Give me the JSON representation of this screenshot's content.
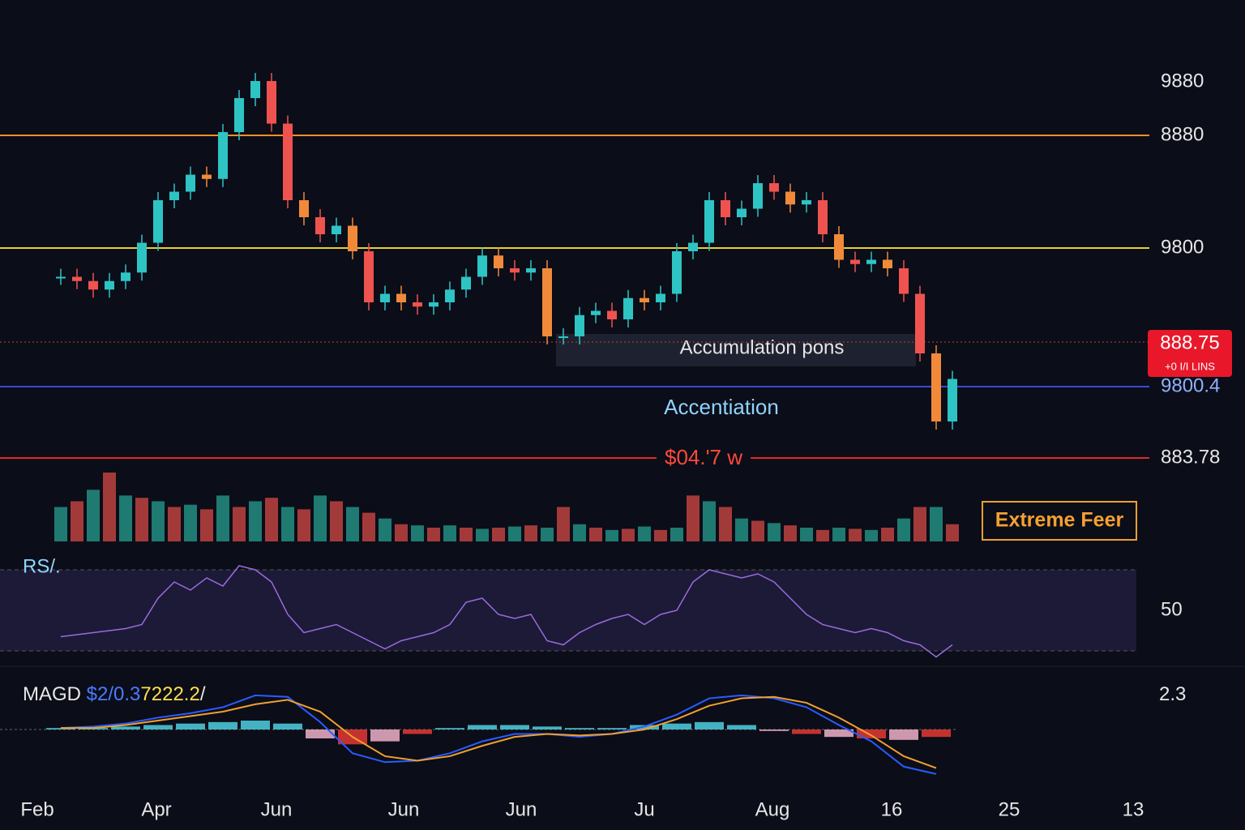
{
  "chart_data": {
    "type": "candlestick",
    "price_labels": [
      "9880",
      "8880",
      "9800",
      "9800.4",
      "883.78"
    ],
    "price_tag": "888.75",
    "price_tag_sub": "+0 I/I LINS",
    "annotations": [
      "Accumulation pons",
      "Accentiation",
      "$04.'7 w"
    ],
    "sentiment": "Extreme Feer",
    "x_labels": [
      "Feb",
      "Apr",
      "Jun",
      "Jun",
      "Jun",
      "Ju",
      "Aug",
      "16",
      "25",
      "13"
    ],
    "closes": [
      270,
      265,
      255,
      265,
      275,
      310,
      360,
      370,
      390,
      385,
      440,
      480,
      500,
      450,
      360,
      340,
      320,
      330,
      300,
      240,
      250,
      240,
      235,
      240,
      255,
      270,
      295,
      280,
      275,
      280,
      200,
      200,
      225,
      230,
      220,
      245,
      240,
      250,
      300,
      310,
      360,
      340,
      350,
      380,
      370,
      355,
      360,
      320,
      290,
      285,
      290,
      280,
      250,
      180,
      100,
      150
    ],
    "volume": [
      30,
      35,
      45,
      60,
      40,
      38,
      35,
      30,
      32,
      28,
      40,
      30,
      35,
      38,
      30,
      28,
      40,
      35,
      30,
      25,
      20,
      15,
      14,
      12,
      14,
      12,
      11,
      12,
      13,
      14,
      12,
      30,
      15,
      12,
      10,
      11,
      13,
      10,
      12,
      40,
      35,
      30,
      20,
      18,
      16,
      14,
      12,
      10,
      12,
      11,
      10,
      12,
      20,
      30,
      30,
      15
    ],
    "rsi": {
      "title": "RS/.",
      "ylim": [
        30,
        70
      ],
      "yticks": [
        50
      ],
      "values": [
        37,
        38,
        39,
        40,
        41,
        43,
        56,
        64,
        60,
        66,
        62,
        72,
        70,
        64,
        48,
        39,
        41,
        43,
        39,
        35,
        31,
        35,
        37,
        39,
        43,
        54,
        56,
        48,
        46,
        48,
        35,
        33,
        39,
        43,
        46,
        48,
        43,
        48,
        50,
        64,
        70,
        68,
        66,
        68,
        64,
        56,
        48,
        43,
        41,
        39,
        41,
        39,
        35,
        33,
        27,
        33
      ]
    },
    "macd": {
      "title": "MAGD",
      "params": [
        "$2/0.3",
        "7222.2",
        "/"
      ],
      "ylim": [
        -3.55,
        3.55
      ],
      "yticks": [
        2.3
      ],
      "macd": [
        0.1,
        0.2,
        0.4,
        0.8,
        1.1,
        1.5,
        2.3,
        2.2,
        0.5,
        -1.6,
        -2.2,
        -2.1,
        -1.6,
        -0.8,
        -0.3,
        -0.3,
        -0.5,
        -0.3,
        0.2,
        1.0,
        2.1,
        2.3,
        2.1,
        1.5,
        0.3,
        -0.8,
        -2.5,
        -3.0
      ],
      "signal": [
        0.1,
        0.1,
        0.3,
        0.6,
        0.9,
        1.2,
        1.7,
        2.0,
        1.2,
        -0.5,
        -1.8,
        -2.1,
        -1.8,
        -1.1,
        -0.5,
        -0.3,
        -0.4,
        -0.3,
        0.0,
        0.7,
        1.6,
        2.1,
        2.2,
        1.8,
        0.8,
        -0.4,
        -1.8,
        -2.6
      ],
      "histogram": [
        0.1,
        0.1,
        0.2,
        0.3,
        0.4,
        0.5,
        0.6,
        0.4,
        -0.6,
        -1.0,
        -0.8,
        -0.3,
        0.1,
        0.3,
        0.3,
        0.2,
        0.1,
        0.1,
        0.3,
        0.4,
        0.5,
        0.3,
        -0.1,
        -0.3,
        -0.5,
        -0.6,
        -0.7,
        -0.5
      ]
    }
  }
}
